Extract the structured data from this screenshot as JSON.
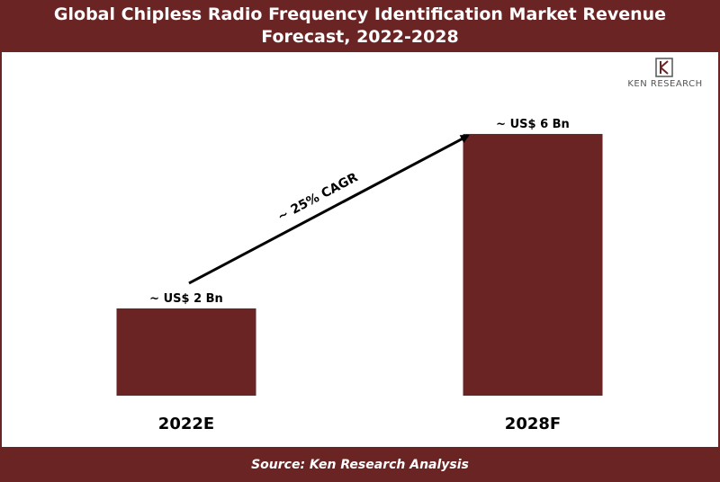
{
  "header": {
    "title": "Global Chipless Radio Frequency Identification Market Revenue Forecast, 2022-2028"
  },
  "footer": {
    "source": "Source: Ken Research Analysis"
  },
  "logo": {
    "text": "KEN RESEARCH",
    "icon": "ken-research-logo-icon"
  },
  "colors": {
    "brand": "#6b2424",
    "bar": "#6b2424",
    "arrow": "#000000"
  },
  "chart_data": {
    "type": "bar",
    "title": "Global Chipless Radio Frequency Identification Market Revenue Forecast, 2022-2028",
    "categories": [
      "2022E",
      "2028F"
    ],
    "values": [
      2,
      6
    ],
    "data_labels": [
      "~ US$ 2 Bn",
      "~ US$ 6 Bn"
    ],
    "unit": "US$ Bn",
    "ylim": [
      0,
      6.7
    ],
    "grid": false,
    "legend": "none",
    "annotation": {
      "text": "~ 25% CAGR",
      "type": "arrow",
      "from": "2022E",
      "to": "2028F"
    }
  }
}
